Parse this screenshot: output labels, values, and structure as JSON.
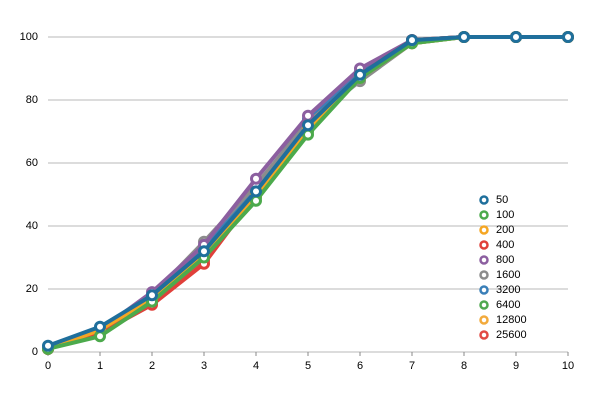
{
  "chart_data": {
    "type": "line",
    "x": [
      0,
      1,
      2,
      3,
      4,
      5,
      6,
      7,
      8,
      9,
      10
    ],
    "xlim": [
      0,
      10
    ],
    "xticks": [
      0,
      1,
      2,
      3,
      4,
      5,
      6,
      7,
      8,
      9,
      10
    ],
    "ylim": [
      0,
      100
    ],
    "yticks": [
      0,
      20,
      40,
      60,
      80,
      100
    ],
    "grid": true,
    "legend": "right",
    "series": [
      {
        "name": "50",
        "color": "#1f6f9c",
        "values": [
          2,
          8,
          18,
          32,
          51,
          72,
          88,
          99,
          100,
          100,
          100
        ]
      },
      {
        "name": "100",
        "color": "#4caa4c",
        "values": [
          1,
          5,
          16,
          30,
          48,
          69,
          87,
          98,
          100,
          100,
          100
        ]
      },
      {
        "name": "200",
        "color": "#f5a623",
        "values": [
          1,
          7,
          17,
          31,
          50,
          71,
          87,
          98,
          100,
          100,
          100
        ]
      },
      {
        "name": "400",
        "color": "#e0403a",
        "values": [
          1,
          6,
          15,
          28,
          50,
          72,
          88,
          99,
          100,
          100,
          100
        ]
      },
      {
        "name": "800",
        "color": "#8c5fa0",
        "values": [
          1,
          7,
          19,
          34,
          55,
          75,
          90,
          99,
          100,
          100,
          100
        ]
      },
      {
        "name": "1600",
        "color": "#8c8c8c",
        "values": [
          1,
          7,
          18,
          35,
          53,
          73,
          86,
          98,
          100,
          100,
          100
        ]
      },
      {
        "name": "3200",
        "color": "#3a7fb8",
        "values": [
          1,
          7,
          18,
          33,
          52,
          74,
          89,
          99,
          100,
          100,
          100
        ]
      },
      {
        "name": "6400",
        "color": "#50a850",
        "values": [
          1,
          6,
          17,
          31,
          49,
          70,
          88,
          98,
          100,
          100,
          100
        ]
      },
      {
        "name": "12800",
        "color": "#f2aa3c",
        "values": [
          1,
          7,
          17,
          32,
          51,
          72,
          88,
          99,
          100,
          100,
          100
        ]
      },
      {
        "name": "25600",
        "color": "#e24a44",
        "values": [
          1,
          7,
          16,
          29,
          50,
          73,
          88,
          99,
          100,
          100,
          100
        ]
      }
    ]
  }
}
